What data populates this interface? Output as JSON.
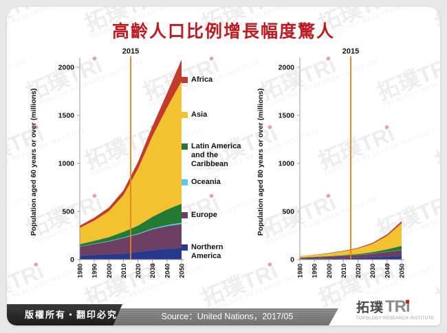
{
  "title": "高齡人口比例增長幅度驚人",
  "title_color": "#bc1b21",
  "annotation": {
    "year": "2015",
    "line_color": "#E8821E"
  },
  "chart_data": [
    {
      "type": "area",
      "stacked": true,
      "ylabel": "Population aged 60 years or over (millions)",
      "x": [
        1980,
        1990,
        2000,
        2010,
        2020,
        2030,
        2040,
        2050
      ],
      "ylim": [
        0,
        2100
      ],
      "yticks": [
        0,
        500,
        1000,
        1500,
        2000
      ],
      "annotation_x": 2015,
      "series": [
        {
          "name": "Northern America",
          "color": "#27398F",
          "values": [
            40,
            48,
            55,
            63,
            79,
            97,
            112,
            123
          ]
        },
        {
          "name": "Europe",
          "color": "#6C3F62",
          "values": [
            93,
            113,
            133,
            161,
            183,
            217,
            235,
            247
          ]
        },
        {
          "name": "Oceania",
          "color": "#5BC8EE",
          "values": [
            2,
            3,
            4,
            5,
            7,
            9,
            11,
            13
          ]
        },
        {
          "name": "Latin America and the Caribbean",
          "color": "#237A33",
          "values": [
            24,
            31,
            41,
            59,
            83,
            121,
            163,
            198
          ]
        },
        {
          "name": "Asia",
          "color": "#F2C22F",
          "values": [
            170,
            210,
            270,
            380,
            590,
            840,
            1060,
            1273
          ]
        },
        {
          "name": "Africa",
          "color": "#C23B2C",
          "values": [
            23,
            30,
            38,
            50,
            72,
            103,
            150,
            226
          ]
        }
      ]
    },
    {
      "type": "area",
      "stacked": true,
      "ylabel": "Population aged 80 years or over (millions)",
      "x": [
        1980,
        1990,
        2000,
        2010,
        2020,
        2030,
        2040,
        2050
      ],
      "ylim": [
        0,
        2100
      ],
      "yticks": [
        0,
        500,
        1000,
        1500,
        2000
      ],
      "annotation_x": 2015,
      "series": [
        {
          "name": "Northern America",
          "color": "#27398F",
          "values": [
            6,
            8,
            10,
            13,
            16,
            22,
            30,
            36
          ]
        },
        {
          "name": "Europe",
          "color": "#6C3F62",
          "values": [
            12,
            16,
            21,
            26,
            31,
            39,
            50,
            63
          ]
        },
        {
          "name": "Oceania",
          "color": "#5BC8EE",
          "values": [
            0.3,
            0.5,
            0.7,
            0.9,
            1.2,
            1.6,
            2.2,
            3
          ]
        },
        {
          "name": "Latin America and the Caribbean",
          "color": "#237A33",
          "values": [
            2,
            3,
            4,
            6,
            9,
            14,
            24,
            40
          ]
        },
        {
          "name": "Asia",
          "color": "#F2C22F",
          "values": [
            13,
            19,
            28,
            40,
            57,
            86,
            140,
            236
          ]
        },
        {
          "name": "Africa",
          "color": "#C23B2C",
          "values": [
            2,
            3,
            4,
            5,
            7,
            10,
            15,
            21
          ]
        }
      ]
    }
  ],
  "legend": {
    "items": [
      {
        "label": "Africa",
        "color": "#C23B2C"
      },
      {
        "label": "Asia",
        "color": "#F2C22F"
      },
      {
        "label": "Latin America and the Caribbean",
        "color": "#237A33"
      },
      {
        "label": "Oceania",
        "color": "#5BC8EE"
      },
      {
        "label": "Europe",
        "color": "#6C3F62"
      },
      {
        "label": "Northern America",
        "color": "#27398F"
      }
    ]
  },
  "footer": {
    "copyright": "版權所有‧翻印必究",
    "source": "Source：United Nations，2017/05",
    "logo": {
      "zh": "拓璞",
      "en": "TRi",
      "subtitle": "TOPOLOGY RESEARCH INSTITUTE"
    }
  },
  "watermark": {
    "big": "拓璞TRi",
    "subtitle": "TOPOLOGY RESEARCH INSTITUTE"
  }
}
